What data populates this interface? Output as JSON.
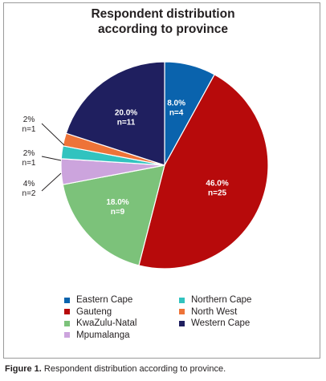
{
  "caption": {
    "label": "Figure 1.",
    "text": " Respondent distribution according to province."
  },
  "chart_data": {
    "type": "pie",
    "title": "Respondent distribution\naccording to province",
    "slices": [
      {
        "label": "Eastern Cape",
        "percent": 8.0,
        "count": 4,
        "pct_text": "8.0%",
        "n_text": "n=4",
        "color": "#0a63ad",
        "label_style": "inside"
      },
      {
        "label": "Gauteng",
        "percent": 46.0,
        "count": 25,
        "pct_text": "46.0%",
        "n_text": "n=25",
        "color": "#b70a0b",
        "label_style": "inside"
      },
      {
        "label": "KwaZulu-Natal",
        "percent": 18.0,
        "count": 9,
        "pct_text": "18.0%",
        "n_text": "n=9",
        "color": "#7cc27a",
        "label_style": "inside"
      },
      {
        "label": "Mpumalanga",
        "percent": 4.0,
        "count": 2,
        "pct_text": "4%",
        "n_text": "n=2",
        "color": "#cca4dd",
        "label_style": "outside"
      },
      {
        "label": "Northern Cape",
        "percent": 2.0,
        "count": 1,
        "pct_text": "2%",
        "n_text": "n=1",
        "color": "#31c3bf",
        "label_style": "outside"
      },
      {
        "label": "North West",
        "percent": 2.0,
        "count": 1,
        "pct_text": "2%",
        "n_text": "n=1",
        "color": "#ee7338",
        "label_style": "outside"
      },
      {
        "label": "Western Cape",
        "percent": 20.0,
        "count": 11,
        "pct_text": "20.0%",
        "n_text": "n=11",
        "color": "#1f1f5f",
        "label_style": "inside"
      }
    ],
    "legend": {
      "placement": "bottom",
      "items": [
        "Eastern Cape",
        "Northern Cape",
        "Gauteng",
        "North West",
        "KwaZulu-Natal",
        "Western Cape",
        "Mpumalanga"
      ]
    }
  }
}
